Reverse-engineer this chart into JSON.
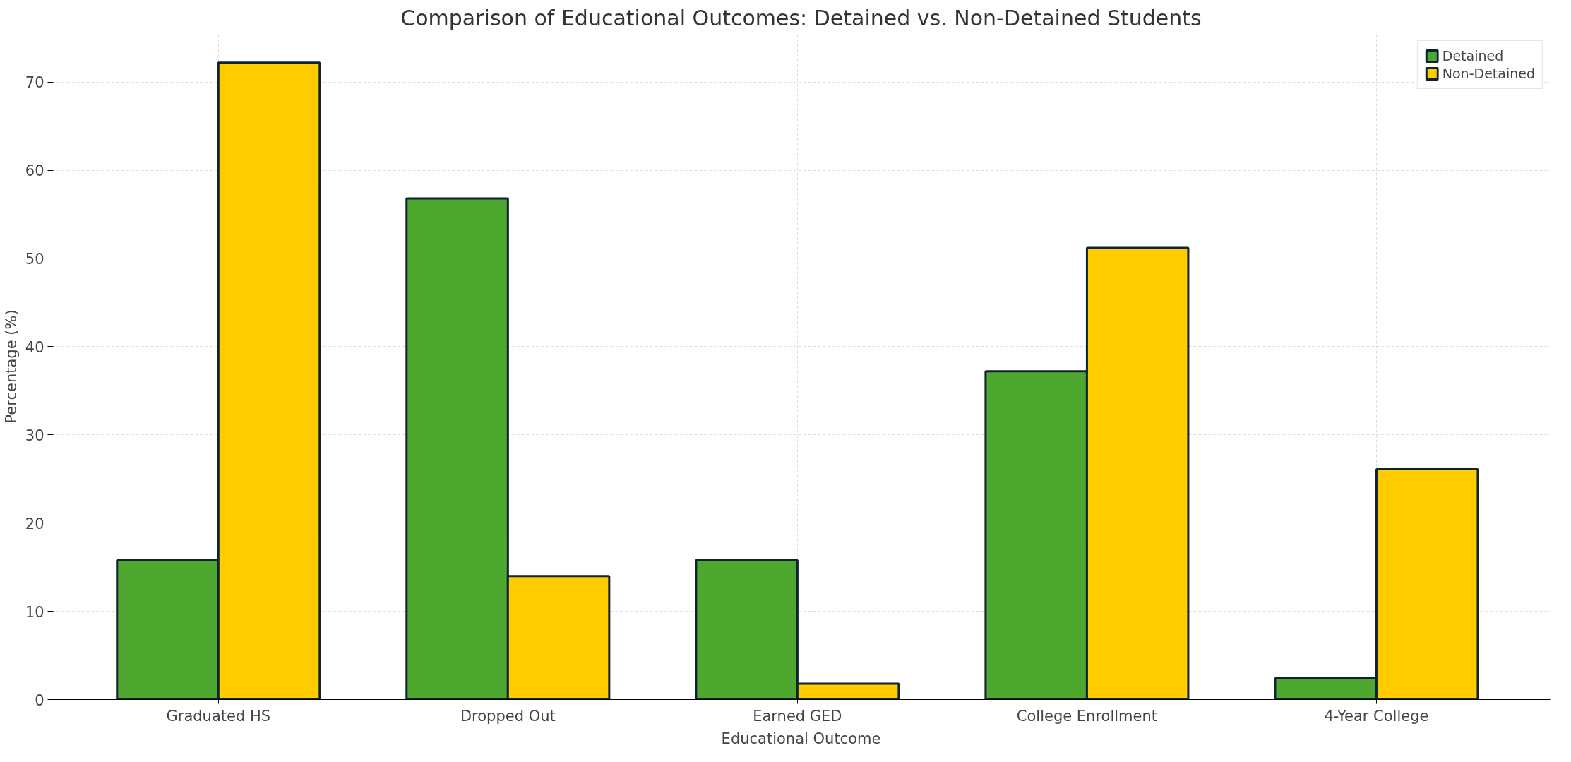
{
  "chart_data": {
    "type": "bar",
    "title": "Comparison of Educational Outcomes: Detained vs. Non-Detained Students",
    "xlabel": "Educational Outcome",
    "ylabel": "Percentage (%)",
    "categories": [
      "Graduated HS",
      "Dropped Out",
      "Earned GED",
      "College Enrollment",
      "4-Year College"
    ],
    "series": [
      {
        "name": "Detained",
        "color": "#4ea72e",
        "values": [
          15.8,
          56.8,
          15.8,
          37.2,
          2.4
        ]
      },
      {
        "name": "Non-Detained",
        "color": "#ffcc00",
        "values": [
          72.2,
          14.0,
          1.8,
          51.2,
          26.1
        ]
      }
    ],
    "ylim": [
      0,
      75.5
    ],
    "yticks": [
      0,
      10,
      20,
      30,
      40,
      50,
      60,
      70
    ],
    "grid": true,
    "legend": "top right"
  }
}
